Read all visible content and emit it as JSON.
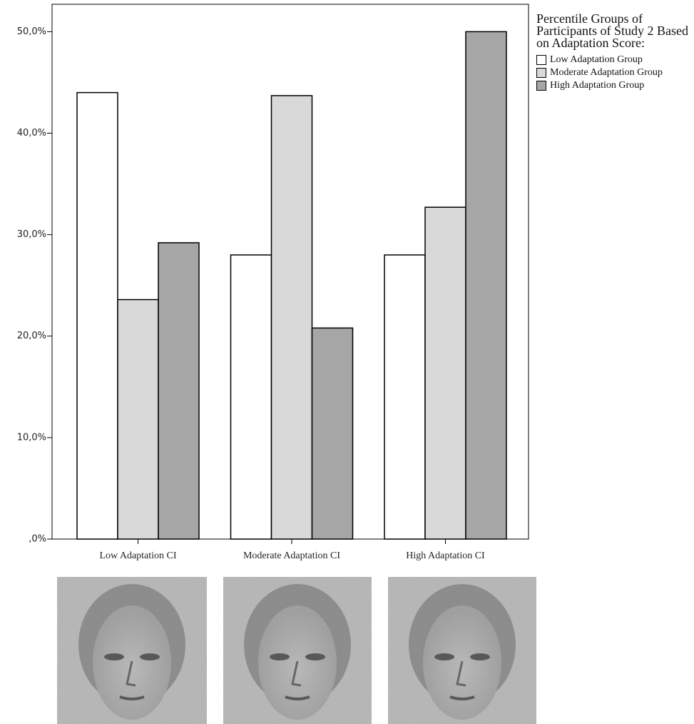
{
  "chart_data": {
    "type": "bar",
    "categories": [
      "Low Adaptation CI",
      "Moderate Adaptation CI",
      "High Adaptation CI"
    ],
    "series": [
      {
        "name": "Low Adaptation Group",
        "color": "#ffffff",
        "values": [
          44.0,
          28.0,
          28.0
        ]
      },
      {
        "name": "Moderate Adaptation Group",
        "color": "#d9d9d9",
        "values": [
          23.6,
          43.7,
          32.7
        ]
      },
      {
        "name": "High Adaptation Group",
        "color": "#a6a6a6",
        "values": [
          29.2,
          20.8,
          50.0
        ]
      }
    ],
    "legend_title": "Percentile Groups of Participants of Study 2 Based on Adaptation Score:",
    "ylim": [
      0,
      52.7
    ],
    "yticks": [
      {
        "value": 0,
        "label": ",0%"
      },
      {
        "value": 10,
        "label": "10,0%"
      },
      {
        "value": 20,
        "label": "20,0%"
      },
      {
        "value": 30,
        "label": "30,0%"
      },
      {
        "value": 40,
        "label": "40,0%"
      },
      {
        "value": 50,
        "label": "50,0%"
      }
    ],
    "legend_position": "right"
  }
}
